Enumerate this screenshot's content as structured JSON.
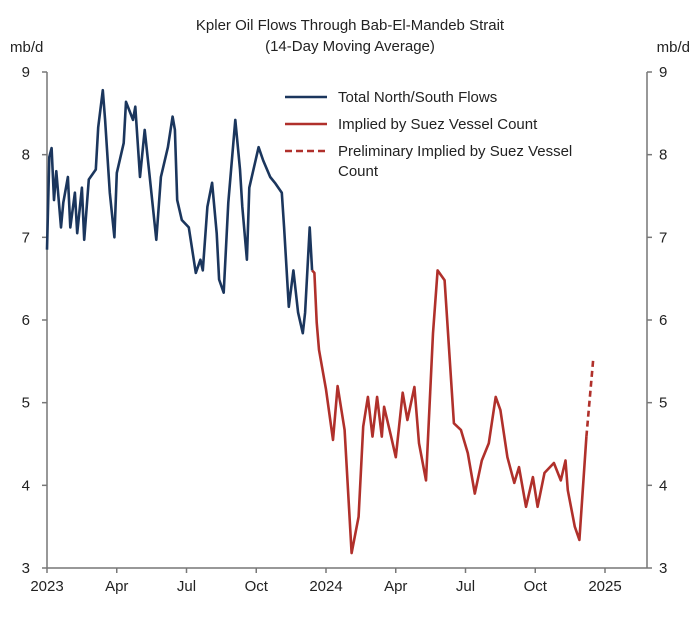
{
  "chart_data": {
    "type": "line",
    "title": "Kpler Oil Flows Through Bab-El-Mandeb Strait",
    "subtitle": "(14-Day Moving Average)",
    "ylabel_left": "mb/d",
    "ylabel_right": "mb/d",
    "ylim": [
      3,
      9
    ],
    "yticks": [
      "3",
      "4",
      "5",
      "6",
      "7",
      "8",
      "9"
    ],
    "x_unit": "months since Jan 2023",
    "xlim": [
      0,
      24
    ],
    "xticks": [
      {
        "label": "2023",
        "x": 0
      },
      {
        "label": "Apr",
        "x": 3
      },
      {
        "label": "Jul",
        "x": 6
      },
      {
        "label": "Oct",
        "x": 9
      },
      {
        "label": "2024",
        "x": 12
      },
      {
        "label": "Apr",
        "x": 15
      },
      {
        "label": "Jul",
        "x": 18
      },
      {
        "label": "Oct",
        "x": 21
      },
      {
        "label": "2025",
        "x": 24
      }
    ],
    "grid": false,
    "legend_position": "top-right",
    "series": [
      {
        "name": "Total North/South Flows",
        "color": "#1b365d",
        "style": "solid",
        "x": [
          0,
          0.1,
          0.2,
          0.3,
          0.4,
          0.6,
          0.7,
          0.9,
          1.0,
          1.2,
          1.3,
          1.5,
          1.6,
          1.8,
          2.1,
          2.2,
          2.4,
          2.5,
          2.7,
          2.9,
          3.0,
          3.3,
          3.4,
          3.7,
          3.8,
          4.0,
          4.2,
          4.4,
          4.7,
          4.9,
          5.2,
          5.4,
          5.5,
          5.6,
          5.8,
          6.1,
          6.4,
          6.6,
          6.7,
          6.9,
          7.1,
          7.3,
          7.4,
          7.6,
          7.8,
          8.1,
          8.3,
          8.4,
          8.6,
          8.7,
          9.1,
          9.3,
          9.6,
          9.8,
          10.1,
          10.2,
          10.4,
          10.6,
          10.8,
          11.0,
          11.1,
          11.3,
          11.4
        ],
        "y": [
          6.85,
          7.97,
          8.08,
          7.45,
          7.8,
          7.12,
          7.42,
          7.73,
          7.12,
          7.54,
          7.05,
          7.6,
          6.97,
          7.7,
          7.82,
          8.33,
          8.78,
          8.42,
          7.54,
          7.0,
          7.78,
          8.14,
          8.64,
          8.42,
          8.58,
          7.73,
          8.3,
          7.78,
          6.97,
          7.73,
          8.09,
          8.46,
          8.3,
          7.45,
          7.21,
          7.12,
          6.57,
          6.73,
          6.6,
          7.37,
          7.66,
          7.05,
          6.49,
          6.33,
          7.42,
          8.42,
          7.82,
          7.37,
          6.73,
          7.6,
          8.09,
          7.93,
          7.73,
          7.66,
          7.54,
          7.12,
          6.16,
          6.6,
          6.09,
          5.84,
          6.09,
          7.12,
          6.6
        ]
      },
      {
        "name": "Implied by Suez Vessel Count",
        "color": "#b0302b",
        "style": "solid",
        "x": [
          11.4,
          11.5,
          11.6,
          11.7,
          12.0,
          12.3,
          12.5,
          12.8,
          13.1,
          13.4,
          13.6,
          13.8,
          14.0,
          14.2,
          14.4,
          14.5,
          14.8,
          15.0,
          15.3,
          15.5,
          15.8,
          16.0,
          16.3,
          16.6,
          16.8,
          17.1,
          17.5,
          17.8,
          18.1,
          18.4,
          18.7,
          19.0,
          19.3,
          19.5,
          19.8,
          20.1,
          20.3,
          20.6,
          20.9,
          21.1,
          21.4,
          21.8,
          22.1,
          22.3,
          22.4,
          22.7,
          22.9,
          23.2
        ],
        "y": [
          6.6,
          6.57,
          5.97,
          5.64,
          5.16,
          4.55,
          5.2,
          4.67,
          3.18,
          3.62,
          4.71,
          5.07,
          4.59,
          5.07,
          4.59,
          4.95,
          4.59,
          4.34,
          5.12,
          4.79,
          5.19,
          4.51,
          4.06,
          5.84,
          6.6,
          6.48,
          4.75,
          4.67,
          4.39,
          3.9,
          4.3,
          4.51,
          5.07,
          4.91,
          4.34,
          4.03,
          4.22,
          3.74,
          4.1,
          3.74,
          4.15,
          4.27,
          4.06,
          4.3,
          3.94,
          3.5,
          3.34,
          4.59
        ]
      },
      {
        "name": "Preliminary Implied by Suez Vessel Count",
        "legend_lines": [
          "Preliminary Implied by Suez Vessel",
          "Count"
        ],
        "color": "#b0302b",
        "style": "dashed",
        "x": [
          23.2,
          23.5
        ],
        "y": [
          4.59,
          5.55
        ]
      }
    ]
  }
}
